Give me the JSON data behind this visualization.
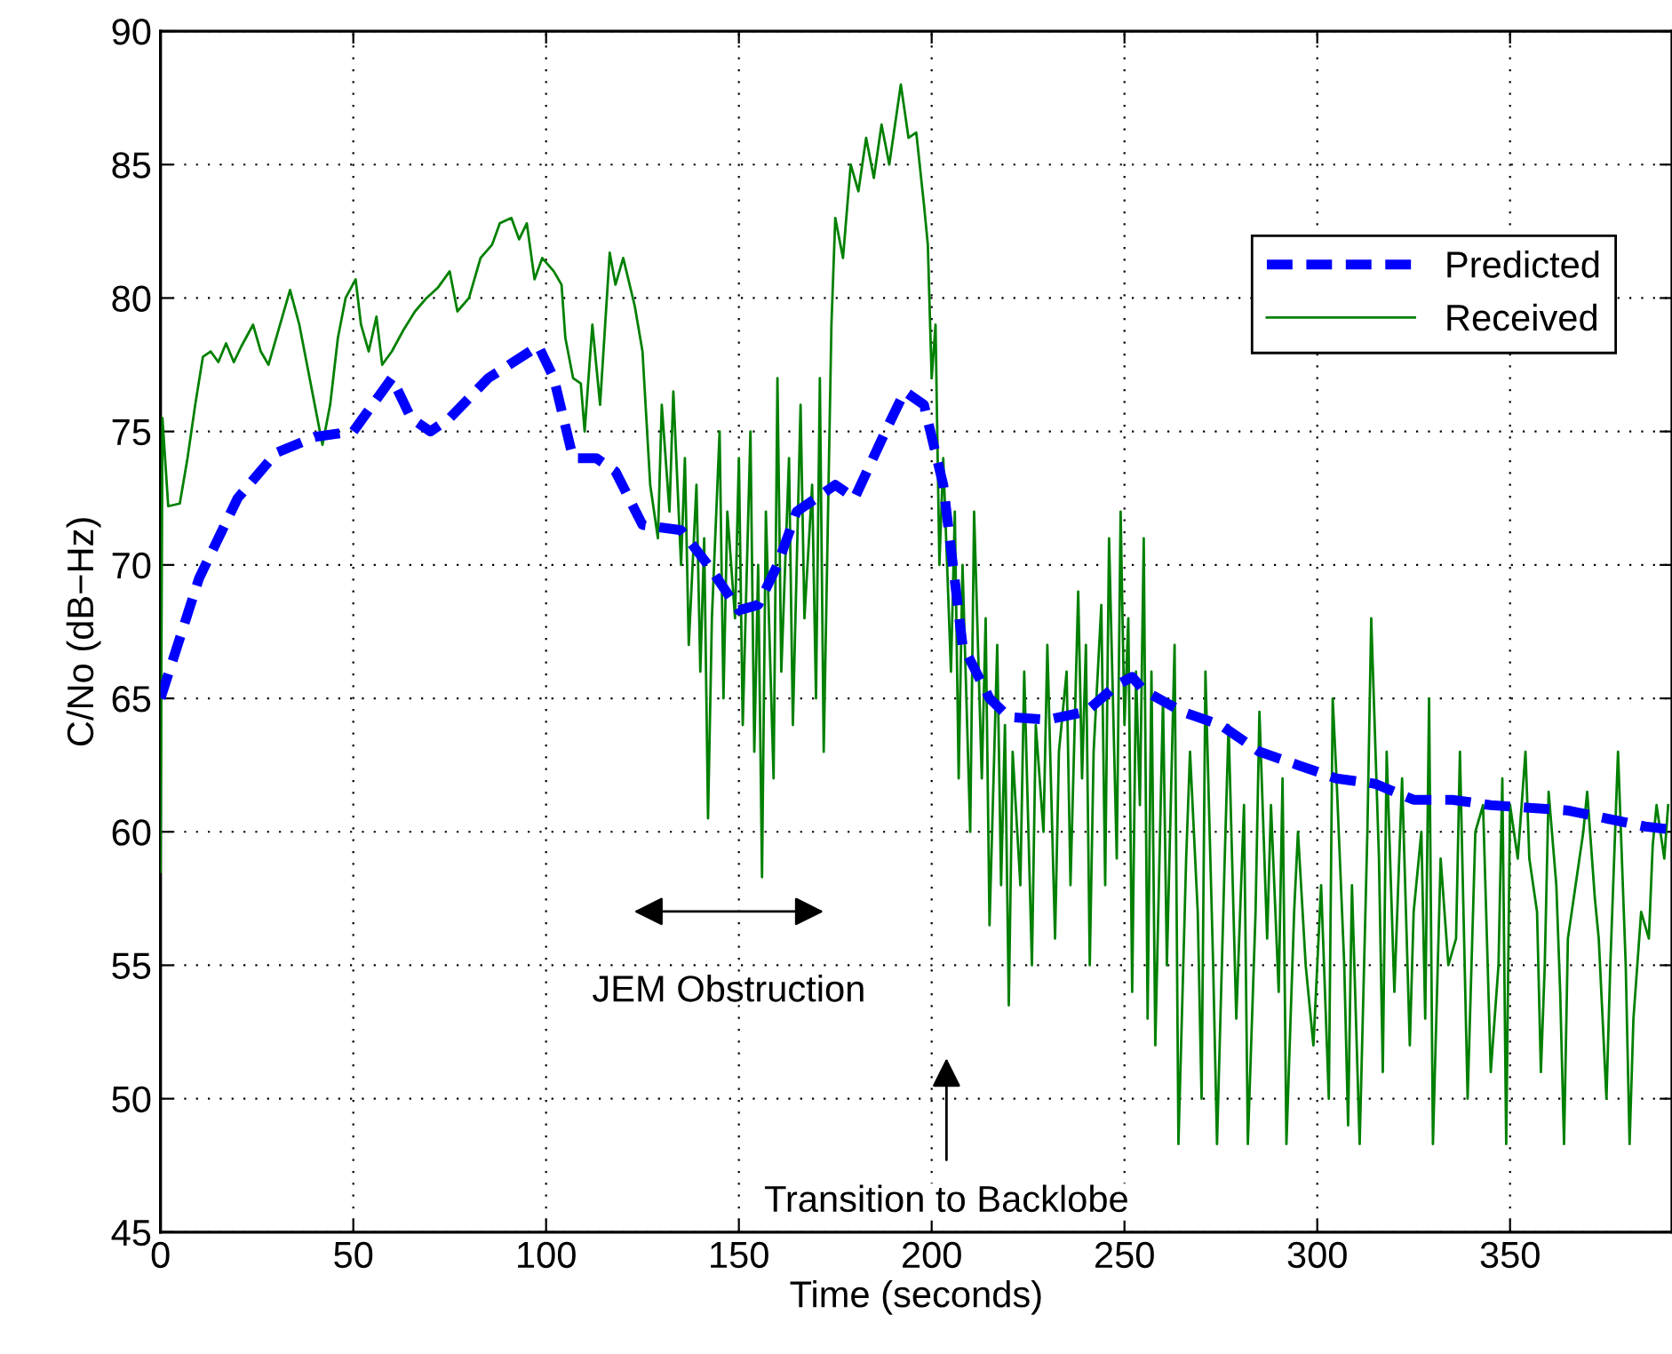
{
  "chart_data": {
    "type": "line",
    "xlabel": "Time (seconds)",
    "ylabel": "C/No (dB−Hz)",
    "xlim": [
      0,
      392
    ],
    "ylim": [
      45,
      90
    ],
    "xticks": [
      0,
      50,
      100,
      150,
      200,
      250,
      300,
      350
    ],
    "yticks": [
      45,
      50,
      55,
      60,
      65,
      70,
      75,
      80,
      85,
      90
    ],
    "grid": true,
    "legend": "right",
    "annotations": [
      "JEM Obstruction",
      "Transition to Backlobe"
    ],
    "series": [
      {
        "name": "Predicted",
        "color": "#0000ff",
        "line_style": "dashed",
        "x": [
          0,
          10,
          20,
          30,
          40,
          50,
          55,
          60,
          65,
          70,
          75,
          85,
          98,
          102,
          107,
          113,
          118,
          125,
          135,
          142,
          150,
          155,
          160,
          165,
          170,
          175,
          180,
          188,
          193,
          198,
          203,
          208,
          215,
          220,
          230,
          240,
          248,
          252,
          255,
          265,
          275,
          285,
          295,
          305,
          315,
          325,
          335,
          345,
          355,
          365,
          375,
          385,
          391
        ],
        "values": [
          65,
          69.5,
          72.5,
          74.2,
          74.8,
          75,
          76,
          77,
          75.5,
          75,
          75.5,
          77,
          78.2,
          77,
          74,
          74,
          73.5,
          71.5,
          71.3,
          70,
          68.3,
          68.5,
          70,
          72,
          72.5,
          73,
          72.5,
          75,
          76.5,
          76,
          73,
          67,
          65,
          64.3,
          64.2,
          64.5,
          65.5,
          65.8,
          65.3,
          64.5,
          64,
          63,
          62.5,
          62,
          61.8,
          61.2,
          61.2,
          61,
          60.9,
          60.8,
          60.5,
          60.2,
          60.1
        ]
      },
      {
        "name": "Received",
        "color": "#008000",
        "line_style": "solid",
        "x": [
          0,
          0.5,
          2,
          5,
          7,
          9,
          11,
          13,
          15,
          17,
          19,
          21,
          24,
          26,
          28,
          31,
          33.6,
          36,
          38,
          40,
          42,
          44,
          46,
          48,
          50.6,
          52,
          54,
          56,
          57.5,
          60,
          63,
          66,
          69,
          72,
          75,
          77,
          80,
          83,
          86,
          88,
          91,
          93,
          95,
          97,
          99,
          102,
          104,
          105,
          107,
          109,
          110,
          112,
          114,
          116.5,
          118,
          120,
          123,
          125,
          127,
          129,
          130,
          132,
          133,
          135,
          136,
          137,
          139,
          140,
          141,
          142,
          143,
          145,
          146,
          147,
          149,
          150,
          151,
          153,
          154,
          155,
          156,
          157,
          159,
          160,
          161,
          163,
          164,
          166,
          167,
          169,
          170,
          171,
          172,
          174,
          175,
          177,
          179,
          181,
          183,
          185,
          187,
          189,
          191,
          192,
          194,
          196,
          198,
          199,
          200,
          201,
          202,
          203,
          205,
          206,
          207,
          208,
          209,
          210,
          211,
          213,
          214,
          215,
          217,
          218,
          219,
          220,
          221,
          223,
          224,
          226,
          227,
          229,
          230,
          232,
          233,
          235,
          236,
          238,
          239,
          240,
          241,
          242,
          244,
          245,
          246,
          248,
          249,
          250,
          251,
          252,
          253,
          254,
          255,
          256,
          257,
          258,
          260,
          261,
          263,
          264,
          266,
          267,
          269,
          270,
          271,
          273,
          274,
          276,
          277,
          279,
          281,
          282,
          284,
          285,
          287,
          288,
          290,
          291,
          292,
          294,
          295,
          297,
          299,
          301,
          303,
          304,
          305,
          307,
          308,
          309,
          311,
          313,
          314,
          316,
          317,
          318,
          320,
          322,
          324,
          325,
          327,
          328,
          329,
          330,
          332,
          334,
          336,
          337,
          339,
          341,
          343,
          344,
          345,
          347,
          348,
          349,
          350,
          352,
          354,
          355,
          357,
          358,
          359,
          360,
          362,
          363,
          364,
          365,
          367,
          369,
          370,
          372,
          373,
          375,
          376,
          377,
          378,
          380,
          381,
          382,
          384,
          386,
          387,
          388,
          390,
          391
        ],
        "values": [
          58.5,
          75.5,
          72.2,
          72.3,
          74,
          76,
          77.8,
          78,
          77.6,
          78.3,
          77.6,
          78.2,
          79,
          78,
          77.5,
          79,
          80.3,
          79,
          77.5,
          76,
          74.5,
          76,
          78.5,
          80,
          80.7,
          79,
          78,
          79.3,
          77.5,
          78,
          78.8,
          79.5,
          80,
          80.4,
          81,
          79.5,
          80,
          81.5,
          82,
          82.8,
          83,
          82.2,
          82.8,
          80.7,
          81.5,
          81,
          80.5,
          78.5,
          77,
          76.8,
          75,
          79,
          76,
          81.7,
          80.5,
          81.5,
          79.7,
          78,
          73,
          71,
          76,
          72,
          76.5,
          70,
          74,
          67,
          73,
          66,
          71,
          60.5,
          68,
          75,
          65,
          72,
          68,
          74,
          64,
          75,
          63,
          70,
          58.3,
          72,
          62,
          77,
          66,
          74,
          64,
          76,
          68,
          73,
          65,
          77,
          63,
          79,
          83,
          81.5,
          85,
          84,
          86,
          84.5,
          86.5,
          85,
          87,
          88,
          86,
          86.2,
          83.5,
          82,
          77,
          79,
          70,
          74,
          66,
          72,
          62,
          70,
          65,
          60,
          72,
          62,
          68,
          56.5,
          67,
          58,
          64,
          53.5,
          63,
          58,
          66,
          55,
          64,
          60,
          67,
          56,
          63,
          66,
          58,
          69,
          62,
          67,
          55,
          63,
          68.5,
          58,
          71,
          59,
          72,
          64,
          68,
          54,
          66,
          61,
          71,
          53,
          66,
          52,
          65,
          55,
          67,
          48.3,
          59,
          63,
          57,
          50,
          66,
          55,
          48.3,
          59,
          64,
          53,
          61,
          48.3,
          57,
          64.5,
          56,
          61,
          54,
          62,
          48.3,
          57,
          60,
          55,
          52,
          58,
          50,
          65,
          62,
          55,
          49,
          58,
          48.3,
          60,
          68,
          59,
          51,
          63,
          54,
          62,
          52,
          57,
          60,
          53,
          65,
          48.3,
          59,
          55,
          56,
          63,
          50,
          60,
          61,
          56,
          51,
          55,
          62,
          48.3,
          61,
          59,
          63,
          59,
          57,
          51,
          55,
          61.5,
          58,
          54,
          48.3,
          56,
          58,
          60,
          61.5,
          57.5,
          56,
          50,
          55,
          59,
          63,
          55,
          48.3,
          53,
          57,
          56,
          59.5,
          61,
          59,
          61
        ]
      }
    ]
  }
}
